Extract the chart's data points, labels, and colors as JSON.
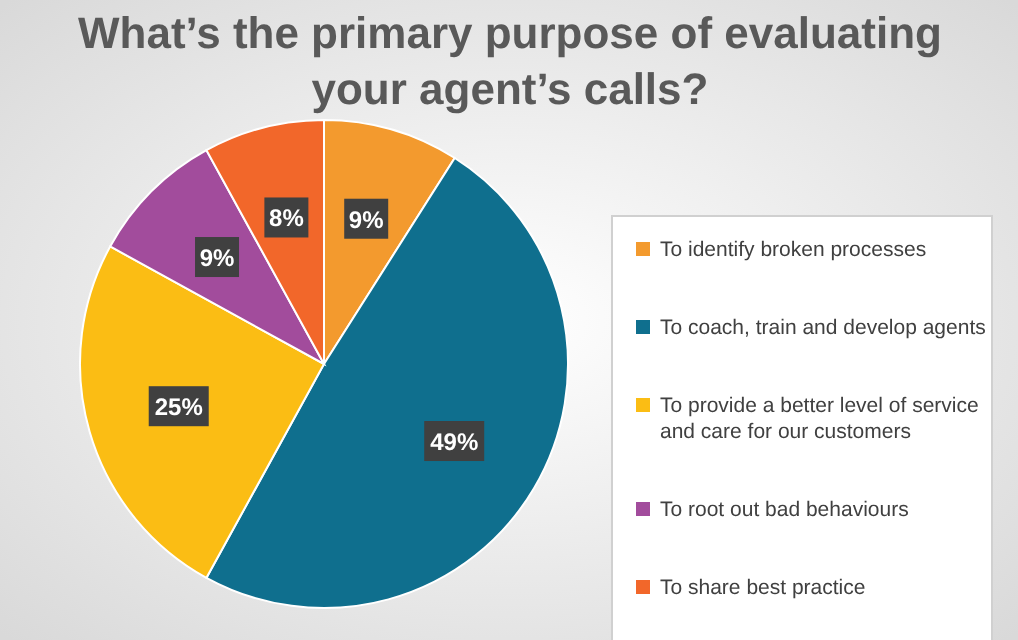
{
  "chart_data": {
    "type": "pie",
    "title": "What’s the primary purpose of evaluating your agent’s calls?",
    "categories": [
      "To identify broken processes",
      "To coach, train and develop agents",
      "To provide a better level of service and care for our customers",
      "To root out bad behaviours",
      "To share best practice"
    ],
    "values": [
      9,
      49,
      25,
      9,
      8
    ],
    "value_labels": [
      "9%",
      "49%",
      "25%",
      "9%",
      "8%"
    ],
    "colors": [
      "#f39a2e",
      "#0f6f8e",
      "#fbbd14",
      "#a24c9c",
      "#f2672a"
    ],
    "legend": "right"
  }
}
